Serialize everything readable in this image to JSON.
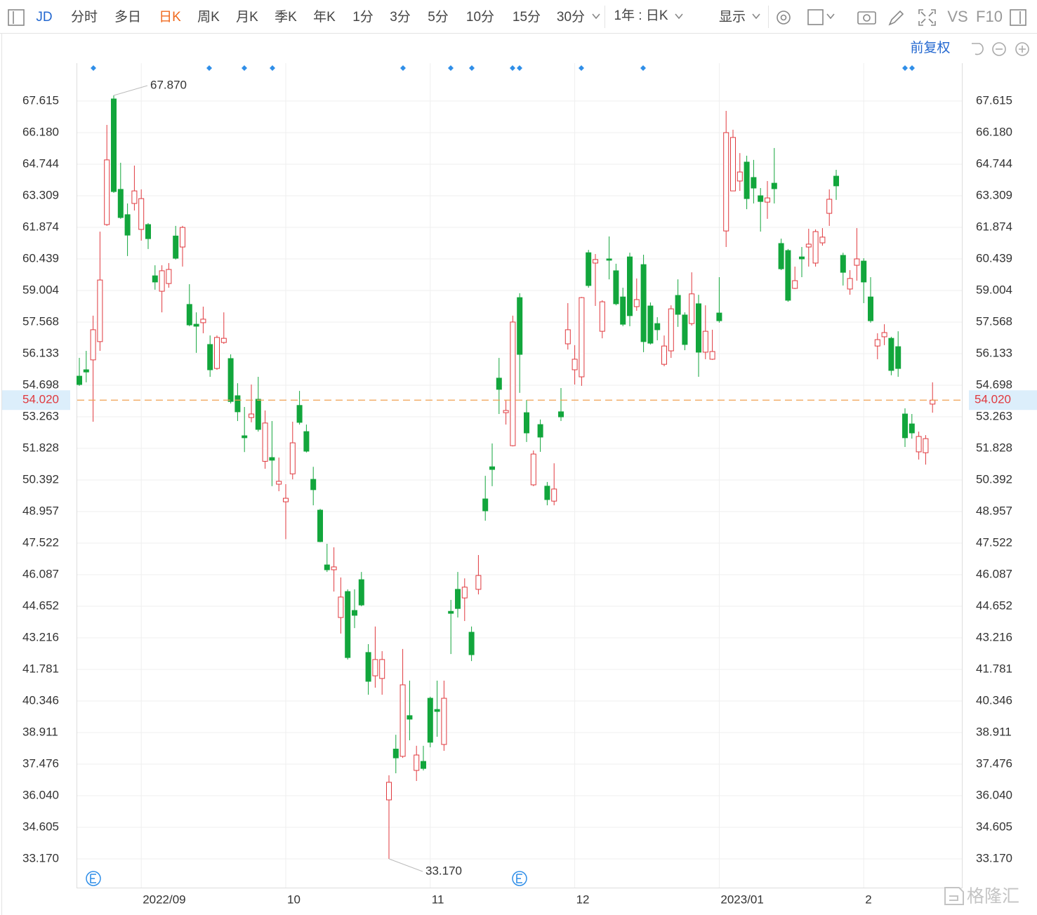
{
  "toolbar": {
    "symbol": "JD",
    "periods": [
      "分时",
      "多日",
      "日K",
      "周K",
      "月K",
      "季K",
      "年K",
      "1分",
      "3分",
      "5分",
      "10分",
      "15分",
      "30分"
    ],
    "range": "1年 : 日K",
    "display": "显示",
    "vs": "VS",
    "f10": "F10"
  },
  "adjust": "前复权",
  "watermark": "格隆汇",
  "chart_data": {
    "type": "candlestick",
    "categories": [
      null,
      null,
      null,
      null,
      null,
      null,
      null,
      null,
      null,
      "2022/09",
      null,
      null,
      null,
      null,
      null,
      null,
      null,
      null,
      null,
      null,
      null,
      null,
      null,
      null,
      null,
      null,
      null,
      null,
      null,
      null,
      "10",
      null,
      null,
      null,
      null,
      null,
      null,
      null,
      null,
      null,
      null,
      null,
      null,
      null,
      null,
      null,
      null,
      null,
      null,
      null,
      null,
      "11",
      null,
      null,
      null,
      null,
      null,
      null,
      null,
      null,
      null,
      null,
      null,
      null,
      null,
      null,
      null,
      null,
      null,
      null,
      null,
      null,
      "12",
      null,
      null,
      null,
      null,
      null,
      null,
      null,
      null,
      null,
      null,
      null,
      null,
      null,
      null,
      null,
      null,
      null,
      null,
      null,
      null,
      "2023/01",
      null,
      null,
      null,
      null,
      null,
      null,
      null,
      null,
      null,
      null,
      null,
      null,
      null,
      null,
      null,
      null,
      null,
      null,
      null,
      null,
      "2",
      null,
      null,
      null,
      null,
      null,
      null,
      null,
      null,
      null,
      null
    ],
    "open": [
      55.11,
      55.4,
      55.85,
      56.68,
      62.0,
      67.71,
      63.6,
      62.45,
      62.96,
      61.78,
      62.0,
      59.67,
      58.97,
      59.32,
      61.48,
      60.98,
      58.37,
      57.47,
      57.54,
      56.55,
      55.46,
      56.64,
      55.91,
      54.22,
      52.4,
      53.23,
      54.06,
      51.24,
      51.41,
      50.2,
      49.4,
      50.67,
      53.78,
      52.59,
      50.42,
      49.02,
      46.53,
      46.31,
      44.14,
      45.32,
      44.46,
      45.86,
      42.55,
      41.49,
      41.37,
      35.85,
      38.16,
      37.83,
      39.68,
      37.19,
      37.6,
      40.47,
      39.96,
      38.37,
      44.42,
      45.42,
      45.03,
      43.47,
      45.42,
      49.53,
      50.99,
      55.02,
      53.45,
      51.95,
      58.68,
      53.45,
      50.17,
      52.91,
      50.11,
      49.43,
      53.49,
      56.58,
      55.4,
      55.08,
      60.72,
      60.25,
      57.15,
      60.44,
      59.9,
      58.71,
      60.53,
      58.27,
      60.18,
      58.3,
      57.5,
      55.65,
      56.26,
      58.78,
      57.89,
      57.5,
      58.4,
      56.2,
      55.88,
      57.98,
      61.71,
      63.53,
      63.98,
      64.84,
      64.14,
      63.31,
      63.02,
      63.88,
      61.14,
      60.82,
      59.1,
      60.53,
      60.98,
      60.25,
      61.17,
      62.51,
      64.2,
      60.6,
      59.07,
      60.15,
      60.34,
      58.71,
      56.48,
      56.9,
      56.83,
      56.45,
      53.39,
      52.94,
      51.67,
      51.63,
      53.84
    ],
    "high": [
      55.94,
      56.26,
      57.86,
      61.68,
      66.53,
      67.87,
      64.81,
      62.96,
      64.68,
      63.6,
      62.07,
      60.15,
      60.15,
      60.25,
      61.94,
      61.94,
      59.29,
      58.01,
      58.27,
      56.96,
      56.96,
      58.01,
      56.1,
      54.79,
      53.71,
      54.73,
      55.08,
      53.55,
      53.07,
      51.41,
      50.2,
      53.04,
      54.44,
      52.91,
      50.99,
      49.08,
      47.49,
      47.33,
      45.96,
      45.42,
      45.42,
      46.21,
      42.93,
      43.73,
      42.61,
      36.97,
      38.81,
      42.71,
      41.27,
      38.31,
      38.31,
      40.54,
      41.27,
      41.27,
      44.94,
      46.21,
      45.92,
      43.73,
      46.98,
      50.58,
      52.05,
      55.94,
      54.03,
      57.86,
      58.88,
      54.03,
      51.73,
      53.14,
      50.3,
      51.15,
      54.57,
      58.43,
      56.52,
      58.71,
      60.85,
      60.66,
      58.56,
      61.46,
      60.22,
      59.13,
      60.72,
      59.55,
      60.63,
      58.46,
      57.79,
      56.96,
      58.33,
      59.51,
      58.01,
      59.83,
      58.81,
      58.33,
      57.22,
      59.61,
      67.17,
      66.31,
      65.25,
      65.13,
      64.94,
      63.66,
      63.98,
      65.48,
      61.36,
      60.89,
      60.09,
      60.98,
      61.81,
      61.78,
      61.84,
      63.6,
      64.49,
      60.72,
      59.93,
      61.84,
      60.47,
      59.61,
      57.06,
      57.47,
      56.9,
      57.15,
      53.65,
      53.39,
      52.59,
      52.43,
      54.83
    ],
    "low": [
      54.67,
      54.83,
      53.04,
      56.26,
      61.94,
      63.44,
      62.26,
      60.57,
      62.64,
      61.27,
      60.89,
      59.04,
      58.01,
      59.13,
      60.41,
      60.09,
      57.38,
      56.17,
      57.06,
      55.08,
      55.4,
      56.58,
      53.87,
      53.07,
      51.66,
      53.01,
      52.59,
      50.9,
      50.11,
      49.88,
      47.7,
      50.42,
      52.91,
      51.64,
      49.24,
      47.56,
      46.21,
      45.32,
      43.41,
      42.23,
      43.66,
      44.65,
      40.63,
      40.95,
      40.63,
      33.17,
      37.06,
      37.76,
      38.56,
      36.71,
      37.19,
      38.24,
      38.72,
      38.08,
      42.48,
      44.14,
      43.98,
      42.16,
      45.19,
      48.54,
      50.11,
      53.39,
      52.91,
      51.92,
      54.35,
      52.12,
      50.11,
      51.67,
      49.24,
      49.24,
      53.07,
      56.32,
      54.73,
      54.67,
      59.13,
      58.3,
      56.83,
      59.51,
      58.33,
      57.38,
      57.38,
      58.08,
      56.2,
      56.55,
      56.74,
      55.56,
      55.94,
      57.35,
      56.29,
      57.41,
      55.08,
      55.88,
      55.85,
      57.54,
      60.98,
      63.53,
      63.53,
      62.7,
      62.96,
      61.68,
      62.26,
      62.96,
      59.93,
      58.49,
      59.07,
      59.61,
      60.09,
      60.09,
      61.04,
      61.94,
      63.12,
      59.23,
      58.81,
      59.45,
      58.43,
      57.54,
      55.88,
      56.52,
      55.15,
      55.08,
      51.89,
      52.27,
      51.32,
      51.09,
      53.45
    ],
    "close": [
      54.73,
      55.3,
      57.22,
      59.48,
      64.94,
      63.5,
      62.32,
      61.52,
      63.53,
      63.18,
      61.36,
      59.39,
      59.9,
      59.96,
      60.47,
      61.87,
      57.44,
      57.38,
      57.7,
      55.4,
      56.87,
      56.83,
      53.96,
      53.49,
      52.31,
      53.39,
      52.69,
      52.98,
      51.29,
      50.33,
      49.56,
      52.08,
      53.01,
      51.7,
      49.95,
      47.59,
      46.31,
      46.44,
      45.07,
      42.32,
      44.24,
      44.71,
      41.24,
      42.23,
      42.23,
      36.65,
      37.76,
      41.08,
      39.52,
      37.89,
      37.28,
      38.47,
      39.87,
      40.47,
      44.33,
      44.55,
      45.52,
      42.45,
      46.05,
      48.99,
      50.87,
      54.51,
      53.55,
      57.57,
      56.1,
      52.53,
      51.57,
      52.34,
      49.5,
      49.98,
      53.26,
      57.22,
      55.88,
      58.68,
      59.23,
      60.41,
      58.49,
      60.38,
      58.4,
      57.47,
      57.86,
      58.59,
      56.68,
      56.61,
      57.22,
      56.48,
      58.17,
      57.92,
      56.55,
      58.85,
      56.2,
      57.15,
      56.23,
      57.63,
      66.18,
      65.96,
      64.39,
      63.18,
      63.66,
      63.05,
      63.21,
      63.63,
      59.99,
      58.56,
      59.45,
      60.44,
      61.11,
      61.68,
      61.43,
      63.15,
      63.76,
      59.83,
      59.55,
      60.44,
      59.39,
      57.63,
      56.77,
      57.09,
      55.37,
      55.46,
      52.31,
      52.53,
      52.37,
      52.27,
      54.02
    ],
    "up_color": "#e0393e",
    "down_color": "#12a63c",
    "ylim": [
      31.862,
      69.337
    ],
    "yticks": [
      67.615,
      {
        "value": 66.18,
        "label": "66.180"
      },
      64.744,
      63.309,
      61.874,
      60.439,
      59.004,
      57.568,
      56.133,
      54.698,
      53.263,
      51.828,
      50.392,
      48.957,
      47.522,
      46.087,
      44.652,
      43.216,
      41.781,
      40.346,
      38.911,
      37.476,
      {
        "value": 36.04,
        "label": "36.040"
      },
      34.605,
      {
        "value": 33.17,
        "label": "33.170"
      }
    ],
    "grid": true,
    "annotations": [
      {
        "value": 67.87,
        "label": "67.870"
      },
      {
        "value": 33.17,
        "label": "33.170"
      }
    ],
    "last_price": {
      "value": 54.02,
      "label": "54.020"
    }
  }
}
